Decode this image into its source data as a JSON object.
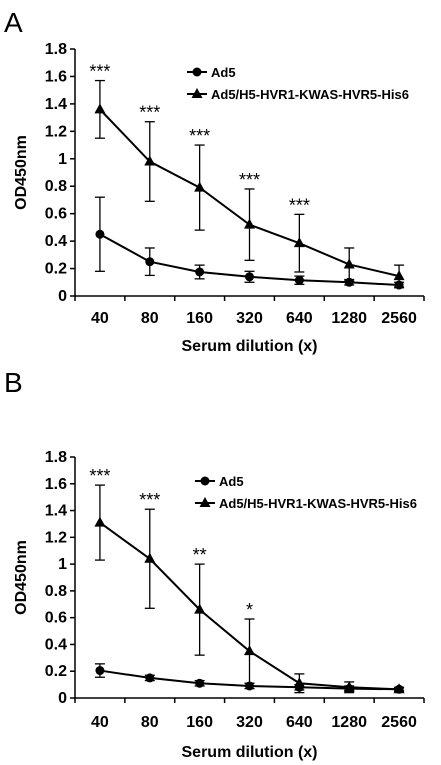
{
  "chart_data": [
    {
      "panel": "A",
      "type": "line",
      "xlabel": "Serum dilution (x)",
      "ylabel": "OD450nm",
      "categories": [
        "40",
        "80",
        "160",
        "320",
        "640",
        "1280",
        "2560"
      ],
      "ylim": [
        0,
        1.8
      ],
      "yticks": [
        "0",
        "0.2",
        "0.4",
        "0.6",
        "0.8",
        "1",
        "1.2",
        "1.4",
        "1.6",
        "1.8"
      ],
      "legend_position": "top-right",
      "grid": false,
      "series": [
        {
          "name": "Ad5",
          "marker": "circle",
          "values": [
            0.45,
            0.25,
            0.175,
            0.14,
            0.115,
            0.1,
            0.08
          ],
          "errors": [
            0.27,
            0.1,
            0.05,
            0.04,
            0.03,
            0.02,
            0.02
          ]
        },
        {
          "name": "Ad5/H5-HVR1-KWAS-HVR5-His6",
          "marker": "triangle",
          "values": [
            1.36,
            0.98,
            0.79,
            0.52,
            0.385,
            0.23,
            0.145
          ],
          "errors": [
            0.21,
            0.29,
            0.31,
            0.26,
            0.21,
            0.12,
            0.08
          ]
        }
      ],
      "significance": [
        "***",
        "***",
        "***",
        "***",
        "***",
        "",
        ""
      ]
    },
    {
      "panel": "B",
      "type": "line",
      "xlabel": "Serum dilution (x)",
      "ylabel": "OD450nm",
      "categories": [
        "40",
        "80",
        "160",
        "320",
        "640",
        "1280",
        "2560"
      ],
      "ylim": [
        0,
        1.8
      ],
      "yticks": [
        "0",
        "0.2",
        "0.4",
        "0.6",
        "0.8",
        "1",
        "1.2",
        "1.4",
        "1.6",
        "1.8"
      ],
      "legend_position": "top-right",
      "grid": false,
      "series": [
        {
          "name": "Ad5",
          "marker": "circle",
          "values": [
            0.205,
            0.15,
            0.11,
            0.09,
            0.08,
            0.07,
            0.065
          ],
          "errors": [
            0.05,
            0.02,
            0.02,
            0.02,
            0.02,
            0.02,
            0.01
          ]
        },
        {
          "name": "Ad5/H5-HVR1-KWAS-HVR5-His6",
          "marker": "triangle",
          "values": [
            1.31,
            1.04,
            0.66,
            0.35,
            0.11,
            0.08,
            0.065
          ],
          "errors": [
            0.28,
            0.37,
            0.34,
            0.24,
            0.07,
            0.04,
            0.015
          ]
        }
      ],
      "significance": [
        "***",
        "***",
        "**",
        "*",
        "",
        "",
        ""
      ]
    }
  ]
}
